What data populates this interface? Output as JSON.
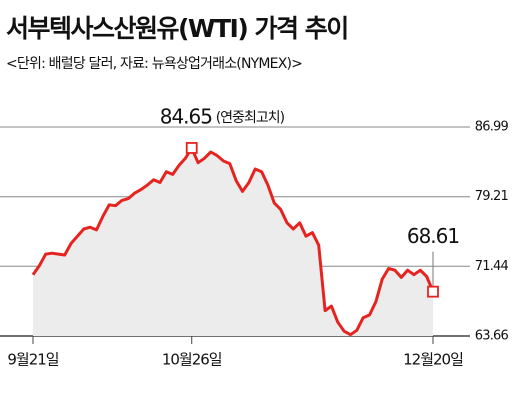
{
  "chart_data": {
    "type": "line",
    "title": "서부텍사스산원유(WTI) 가격 추이",
    "subtitle": "<단위: 배럴당 달러, 자료: 뉴욕상업거래소(NYMEX)>",
    "categories": [
      "9월21일",
      null,
      null,
      null,
      null,
      null,
      null,
      null,
      null,
      null,
      null,
      null,
      null,
      null,
      null,
      null,
      null,
      null,
      null,
      null,
      null,
      null,
      null,
      null,
      null,
      "10월26일",
      null,
      null,
      null,
      null,
      null,
      null,
      null,
      null,
      null,
      null,
      null,
      null,
      null,
      null,
      null,
      null,
      null,
      null,
      null,
      null,
      null,
      null,
      null,
      null,
      null,
      null,
      null,
      null,
      null,
      null,
      null,
      null,
      null,
      null,
      null,
      null,
      null,
      "12월20일"
    ],
    "values": [
      70.5,
      71.5,
      72.8,
      72.9,
      72.8,
      72.7,
      74.0,
      74.8,
      75.6,
      75.8,
      75.5,
      77.0,
      78.3,
      78.2,
      78.8,
      79.0,
      79.6,
      80.0,
      80.5,
      81.1,
      80.8,
      82.0,
      81.7,
      82.7,
      83.5,
      84.65,
      83.0,
      83.5,
      84.2,
      83.8,
      83.2,
      82.9,
      81.0,
      79.8,
      80.8,
      82.3,
      82.0,
      80.5,
      78.5,
      77.8,
      76.3,
      75.6,
      76.3,
      74.8,
      75.2,
      73.8,
      66.5,
      67.0,
      65.2,
      64.2,
      63.8,
      64.3,
      65.7,
      66.0,
      67.5,
      70.0,
      71.2,
      71.0,
      70.2,
      71.0,
      70.5,
      71.0,
      70.3,
      68.61
    ],
    "value_labels": [
      null,
      null,
      null,
      null,
      null,
      null,
      null,
      null,
      null,
      null,
      null,
      null,
      null,
      null,
      null,
      null,
      null,
      null,
      null,
      null,
      null,
      null,
      null,
      null,
      null,
      "84.65",
      null,
      null,
      null,
      null,
      null,
      null,
      null,
      null,
      null,
      null,
      null,
      null,
      null,
      null,
      null,
      null,
      null,
      null,
      null,
      null,
      null,
      null,
      null,
      null,
      null,
      null,
      null,
      null,
      null,
      null,
      null,
      null,
      null,
      null,
      null,
      null,
      null,
      "68.61"
    ],
    "annotations": [
      "(연중최고치)"
    ],
    "color": "#e52420",
    "ylim": [
      63.66,
      86.99
    ],
    "yticks": [
      63.66,
      71.44,
      79.21,
      86.99
    ],
    "grid": true
  }
}
